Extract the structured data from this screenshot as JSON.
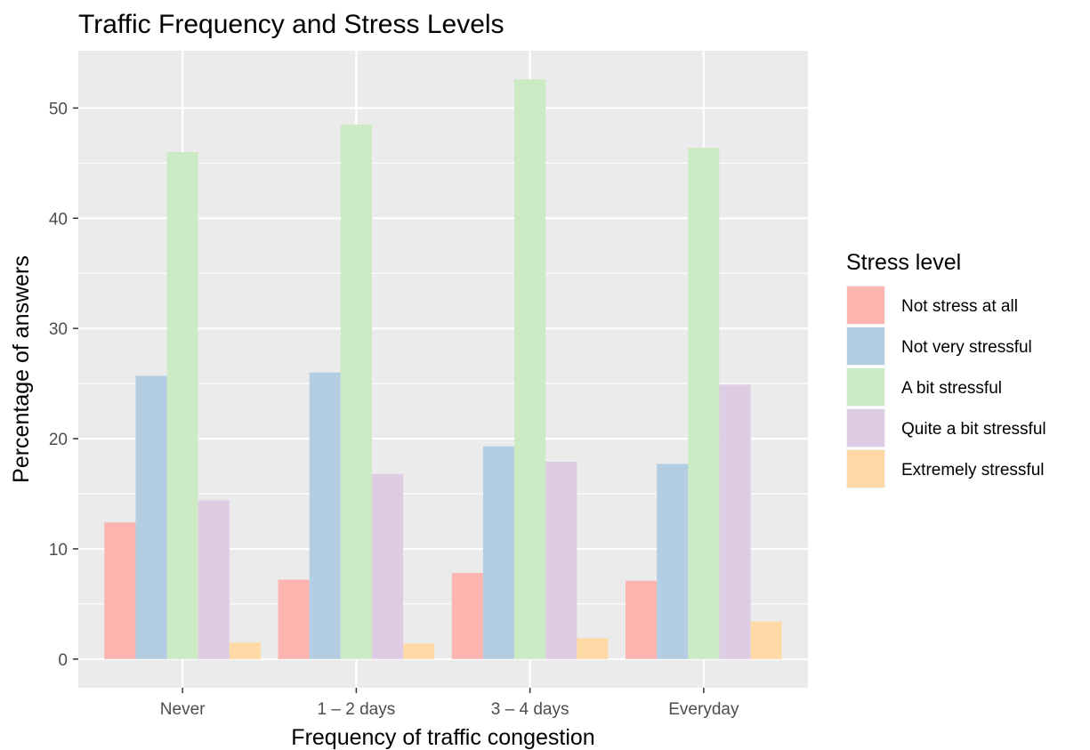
{
  "chart_data": {
    "type": "bar",
    "title": "Traffic Frequency and Stress Levels",
    "xlabel": "Frequency of traffic congestion",
    "ylabel": "Percentage of answers",
    "categories": [
      "Never",
      "1 – 2 days",
      "3 – 4 days",
      "Everyday"
    ],
    "ylim": [
      -2.6,
      55.2
    ],
    "yticks": [
      0,
      10,
      20,
      30,
      40,
      50
    ],
    "ytick_labels": [
      "0",
      "10",
      "20",
      "30",
      "40",
      "50"
    ],
    "grid": true,
    "legend": {
      "title": "Stress level",
      "placement": "right"
    },
    "series": [
      {
        "name": "Not stress at all",
        "color": "#FBB4AE",
        "values": [
          12.4,
          7.2,
          7.8,
          7.1
        ]
      },
      {
        "name": "Not very stressful",
        "color": "#B3CDE3",
        "values": [
          25.7,
          26.0,
          19.3,
          17.7
        ]
      },
      {
        "name": "A bit stressful",
        "color": "#CCEBC5",
        "values": [
          46.0,
          48.5,
          52.6,
          46.4
        ]
      },
      {
        "name": "Quite a bit stressful",
        "color": "#DECBE4",
        "values": [
          14.4,
          16.8,
          17.9,
          24.9
        ]
      },
      {
        "name": "Extremely stressful",
        "color": "#FED9A6",
        "values": [
          1.5,
          1.4,
          1.9,
          3.4
        ]
      }
    ]
  }
}
